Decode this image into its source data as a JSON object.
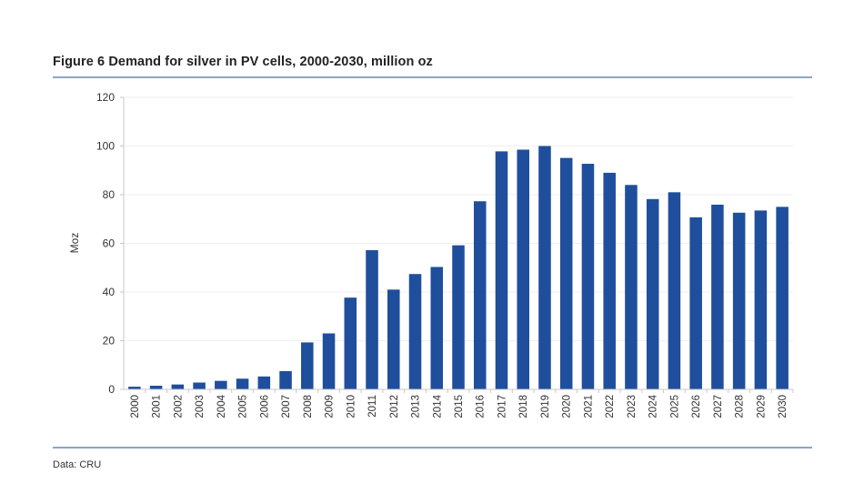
{
  "figure": {
    "title": "Figure 6  Demand for silver in PV cells, 2000-2030, million oz",
    "source": "Data: CRU"
  },
  "colors": {
    "bar": "#1f4e9c",
    "rule": "#8fa6c4",
    "axis": "#c8c8c8",
    "grid": "#efefef"
  },
  "chart_data": {
    "type": "bar",
    "title": "Figure 6  Demand for silver in PV cells, 2000-2030, million oz",
    "xlabel": "",
    "ylabel": "Moz",
    "ylim": [
      0,
      120
    ],
    "yticks": [
      0,
      20,
      40,
      60,
      80,
      100,
      120
    ],
    "grid": true,
    "legend": "none",
    "categories": [
      "2000",
      "2001",
      "2002",
      "2003",
      "2004",
      "2005",
      "2006",
      "2007",
      "2008",
      "2009",
      "2010",
      "2011",
      "2012",
      "2013",
      "2014",
      "2015",
      "2016",
      "2017",
      "2018",
      "2019",
      "2020",
      "2021",
      "2022",
      "2023",
      "2024",
      "2025",
      "2026",
      "2027",
      "2028",
      "2029",
      "2030"
    ],
    "series": [
      {
        "name": "Demand for silver in PV cells",
        "values": [
          1.1,
          1.5,
          2.0,
          2.8,
          3.5,
          4.4,
          5.3,
          7.5,
          19.3,
          23.0,
          37.7,
          57.2,
          41.0,
          47.4,
          50.3,
          59.2,
          77.3,
          97.8,
          98.5,
          100.0,
          95.1,
          92.7,
          89.0,
          84.0,
          78.2,
          81.0,
          70.7,
          75.9,
          72.6,
          73.5,
          75.0
        ]
      }
    ],
    "source": "Data: CRU"
  }
}
